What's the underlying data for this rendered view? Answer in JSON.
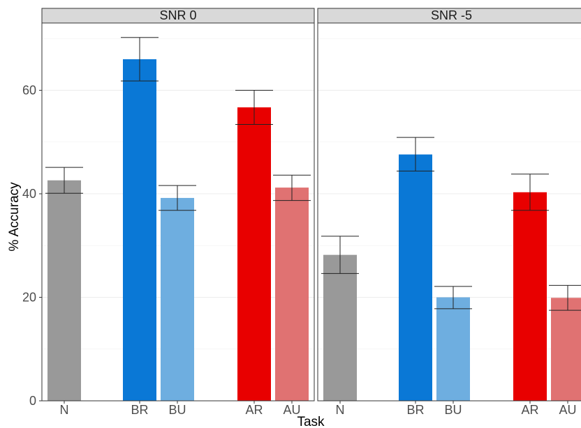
{
  "chart_data": {
    "type": "bar",
    "xlabel": "Task",
    "ylabel": "% Accuracy",
    "ylim": [
      0,
      73
    ],
    "yticks": [
      0,
      20,
      40,
      60
    ],
    "grid": true,
    "legend": "none",
    "categories": [
      "N",
      "BR",
      "BU",
      "AR",
      "AU"
    ],
    "colors": {
      "N": "#999999",
      "BR": "#0a78d6",
      "BU": "#6eaee0",
      "AR": "#e80000",
      "AU": "#e07272"
    },
    "panels": [
      {
        "title": "SNR 0",
        "values": [
          42.6,
          66.0,
          39.2,
          56.7,
          41.2
        ],
        "error_low": [
          40.1,
          61.8,
          36.8,
          53.4,
          38.7
        ],
        "error_high": [
          45.1,
          70.2,
          41.6,
          60.0,
          43.6
        ]
      },
      {
        "title": "SNR -5",
        "values": [
          28.2,
          47.6,
          20.0,
          40.3,
          19.9
        ],
        "error_low": [
          24.6,
          44.4,
          17.8,
          36.8,
          17.5
        ],
        "error_high": [
          31.8,
          50.9,
          22.1,
          43.8,
          22.3
        ]
      }
    ]
  }
}
